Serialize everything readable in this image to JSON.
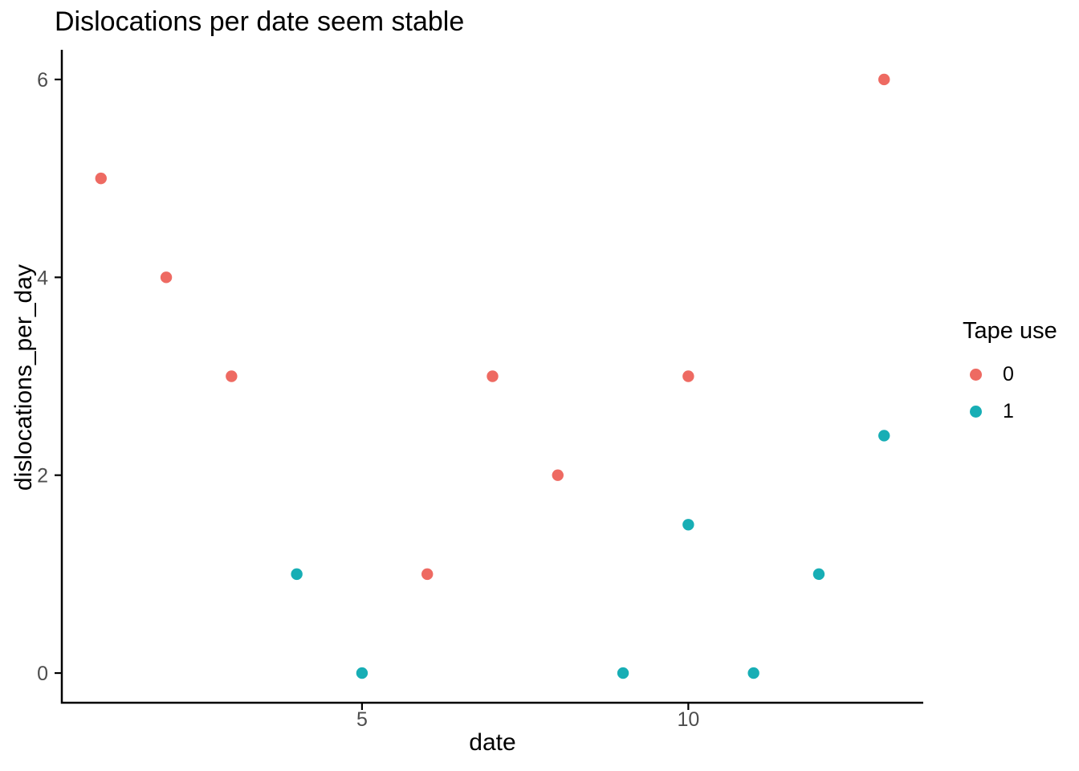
{
  "chart_data": {
    "type": "scatter",
    "title": "Dislocations per date seem stable",
    "xlabel": "date",
    "ylabel": "dislocations_per_day",
    "x_ticks": [
      5,
      10
    ],
    "y_ticks": [
      0,
      2,
      4,
      6
    ],
    "xlim": [
      0.4,
      13.6
    ],
    "ylim": [
      -0.3,
      6.3
    ],
    "grid": "off",
    "legend": {
      "title": "Tape use",
      "position": "right"
    },
    "series": [
      {
        "name": "0",
        "color": "#EE6A62",
        "points": [
          [
            1,
            5
          ],
          [
            2,
            4
          ],
          [
            3,
            3
          ],
          [
            6,
            1
          ],
          [
            7,
            3
          ],
          [
            8,
            2
          ],
          [
            10,
            3
          ],
          [
            13,
            6
          ]
        ]
      },
      {
        "name": "1",
        "color": "#17AEB5",
        "points": [
          [
            4,
            1
          ],
          [
            5,
            0
          ],
          [
            9,
            0
          ],
          [
            10,
            1.5
          ],
          [
            11,
            0
          ],
          [
            12,
            1
          ],
          [
            13,
            2.4
          ]
        ]
      }
    ]
  },
  "style": {
    "background": "#ffffff",
    "axis_color": "#000000",
    "tick_label_color": "#4d4d4d",
    "text_color": "#000000"
  }
}
